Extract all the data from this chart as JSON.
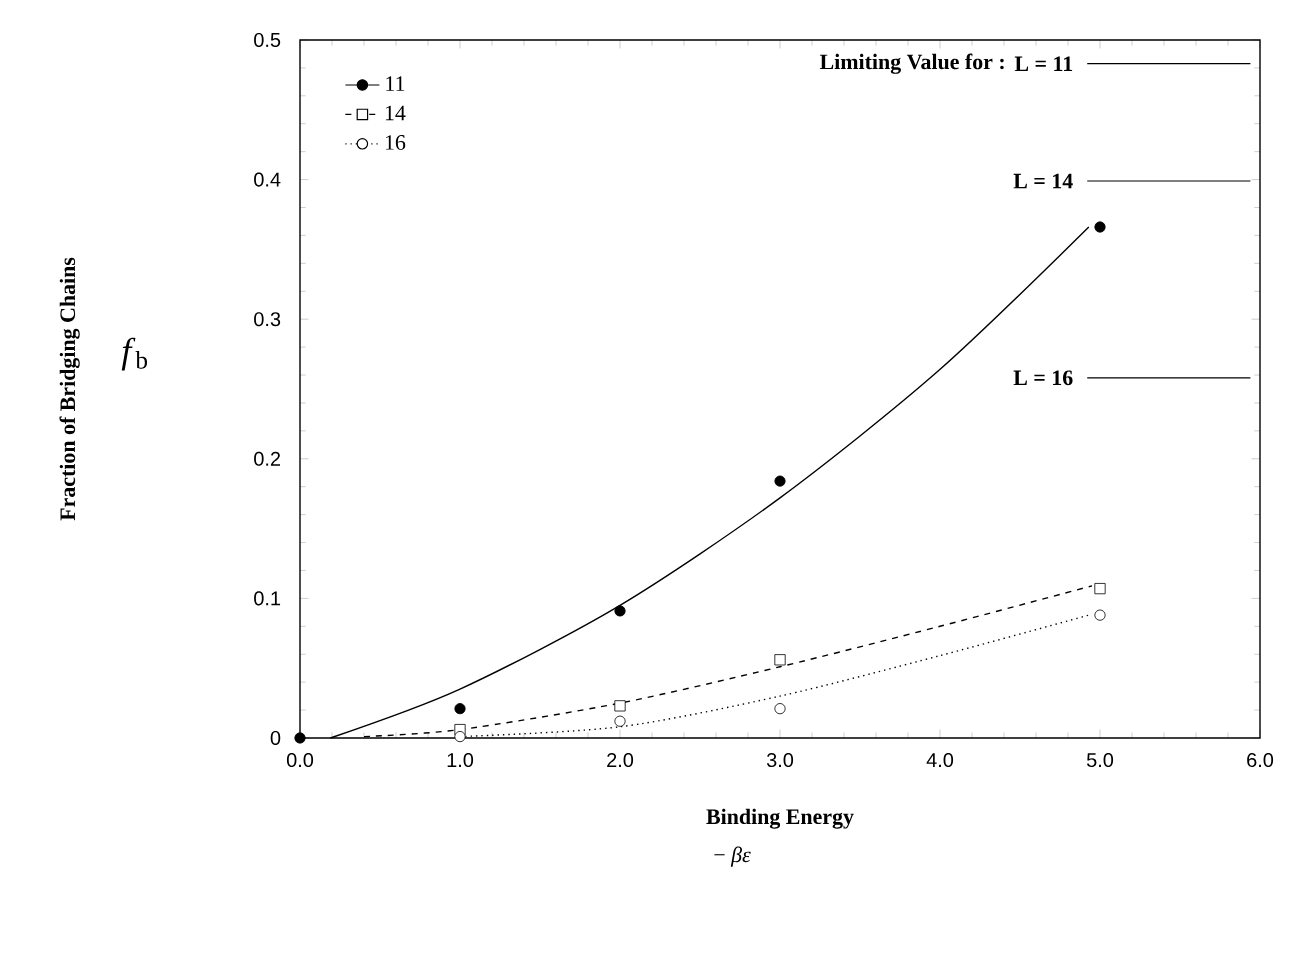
{
  "chart_data": {
    "type": "scatter",
    "xlabel": "Binding Energy",
    "ylabel": "*f*$_{b}$",
    "annotations": [
      "Fraction of Bridging Chains",
      "− *βε*",
      "Limiting Value for :",
      "L = 11",
      "L = 14",
      "L = 16"
    ],
    "xlim": [
      0,
      6
    ],
    "ylim": [
      0,
      0.5
    ],
    "xticks": [
      {
        "value": 0,
        "label": "0.0"
      },
      {
        "value": 1,
        "label": "1.0"
      },
      {
        "value": 2,
        "label": "2.0"
      },
      {
        "value": 3,
        "label": "3.0"
      },
      {
        "value": 4,
        "label": "4.0"
      },
      {
        "value": 5,
        "label": "5.0"
      },
      {
        "value": 6,
        "label": "6.0"
      }
    ],
    "yticks": [
      0,
      0.1,
      0.2,
      0.3,
      0.4,
      0.5
    ],
    "grid": false,
    "legend": "top left",
    "series": [
      {
        "name": "11",
        "color": "#000000",
        "colors": [
          "#000000",
          "#000000",
          "#000000",
          "#000000",
          "#000000"
        ],
        "marker": "circle",
        "line_style": "solid",
        "x": [
          0,
          1,
          2,
          3,
          5
        ],
        "values": [
          0,
          0.021,
          0.091,
          0.184,
          0.366
        ]
      },
      {
        "name": "14",
        "color": "#000000",
        "colors": [
          "#ffffff",
          "#ffffff",
          "#ffffff",
          "#ffffff"
        ],
        "marker": "square",
        "line_style": "dashed",
        "x": [
          1,
          2,
          3,
          5
        ],
        "values": [
          0.006,
          0.023,
          0.056,
          0.107
        ]
      },
      {
        "name": "16",
        "color": "#000000",
        "colors": [
          "#ffffff",
          "#ffffff",
          "#ffffff",
          "#ffffff"
        ],
        "marker": "circle",
        "line_style": "dotted",
        "x": [
          1,
          2,
          3,
          5
        ],
        "values": [
          0.001,
          0.012,
          0.021,
          0.088
        ]
      },
      {
        "type": "line",
        "color": "#000000",
        "line_style": "solid",
        "x": [
          0.19,
          1,
          2,
          3,
          3.99,
          4.93
        ],
        "values": [
          0,
          0.035,
          0.095,
          0.172,
          0.263,
          0.366
        ]
      },
      {
        "type": "line",
        "color": "#000000",
        "line_style": "dashed",
        "x": [
          0.4,
          1,
          2,
          3,
          4,
          4.95
        ],
        "values": [
          0.001,
          0.006,
          0.025,
          0.051,
          0.08,
          0.109
        ]
      },
      {
        "type": "line",
        "color": "#000000",
        "line_style": "dotted",
        "x": [
          1,
          2,
          3,
          4,
          4.93
        ],
        "values": [
          0.001,
          0.008,
          0.03,
          0.059,
          0.088
        ]
      }
    ],
    "ref_lines": [
      {
        "axis": "y",
        "value": 0.483
      },
      {
        "axis": "y",
        "value": 0.399
      },
      {
        "axis": "y",
        "value": 0.258
      }
    ]
  }
}
